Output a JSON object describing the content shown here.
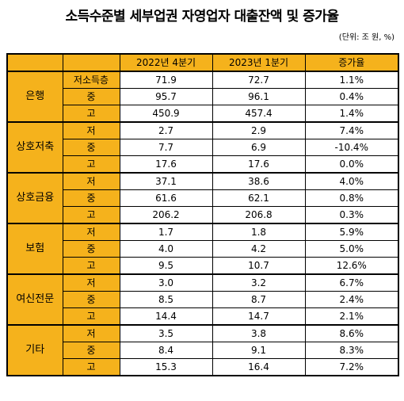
{
  "title": "소득수준별 세부업권 자영업자 대출잔액 및 증가율",
  "unit": "(단위: 조 원, %)",
  "headers": [
    "2022년 4분기",
    "2023년 1분기",
    "증가율"
  ],
  "groups": [
    {
      "name": "은행",
      "rows": [
        {
          "level": "저소득층",
          "q4_2022": "71.9",
          "q1_2023": "72.7",
          "growth": "1.1%"
        },
        {
          "level": "중",
          "q4_2022": "95.7",
          "q1_2023": "96.1",
          "growth": "0.4%"
        },
        {
          "level": "고",
          "q4_2022": "450.9",
          "q1_2023": "457.4",
          "growth": "1.4%"
        }
      ]
    },
    {
      "name": "상호저축",
      "rows": [
        {
          "level": "저",
          "q4_2022": "2.7",
          "q1_2023": "2.9",
          "growth": "7.4%"
        },
        {
          "level": "중",
          "q4_2022": "7.7",
          "q1_2023": "6.9",
          "growth": "-10.4%"
        },
        {
          "level": "고",
          "q4_2022": "17.6",
          "q1_2023": "17.6",
          "growth": "0.0%"
        }
      ]
    },
    {
      "name": "상호금융",
      "rows": [
        {
          "level": "저",
          "q4_2022": "37.1",
          "q1_2023": "38.6",
          "growth": "4.0%"
        },
        {
          "level": "중",
          "q4_2022": "61.6",
          "q1_2023": "62.1",
          "growth": "0.8%"
        },
        {
          "level": "고",
          "q4_2022": "206.2",
          "q1_2023": "206.8",
          "growth": "0.3%"
        }
      ]
    },
    {
      "name": "보험",
      "rows": [
        {
          "level": "저",
          "q4_2022": "1.7",
          "q1_2023": "1.8",
          "growth": "5.9%"
        },
        {
          "level": "중",
          "q4_2022": "4.0",
          "q1_2023": "4.2",
          "growth": "5.0%"
        },
        {
          "level": "고",
          "q4_2022": "9.5",
          "q1_2023": "10.7",
          "growth": "12.6%"
        }
      ]
    },
    {
      "name": "여신전문",
      "rows": [
        {
          "level": "저",
          "q4_2022": "3.0",
          "q1_2023": "3.2",
          "growth": "6.7%"
        },
        {
          "level": "중",
          "q4_2022": "8.5",
          "q1_2023": "8.7",
          "growth": "2.4%"
        },
        {
          "level": "고",
          "q4_2022": "14.4",
          "q1_2023": "14.7",
          "growth": "2.1%"
        }
      ]
    },
    {
      "name": "기타",
      "rows": [
        {
          "level": "저",
          "q4_2022": "3.5",
          "q1_2023": "3.8",
          "growth": "8.6%"
        },
        {
          "level": "중",
          "q4_2022": "8.4",
          "q1_2023": "9.1",
          "growth": "8.3%"
        },
        {
          "level": "고",
          "q4_2022": "15.3",
          "q1_2023": "16.4",
          "growth": "7.2%"
        }
      ]
    }
  ],
  "colors": {
    "header_bg": "#f5b21c",
    "border": "#000000"
  }
}
